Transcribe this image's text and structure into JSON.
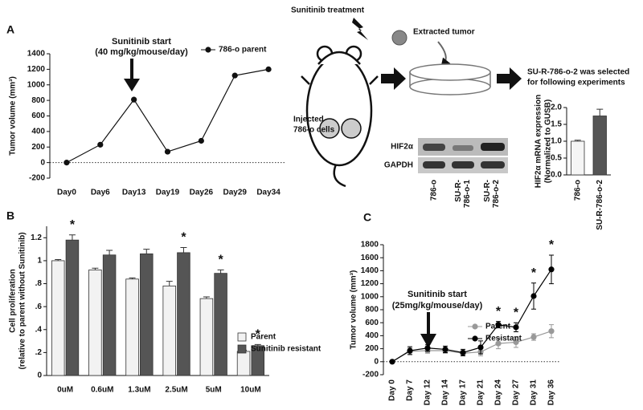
{
  "panels": {
    "a": "A",
    "b": "B",
    "c": "C"
  },
  "diagram": {
    "treatment": "Sunitinib treatment",
    "extracted": "Extracted tumor",
    "selected": [
      "SU-R-786-o-2 was selected",
      "for following experiments"
    ],
    "injected": [
      "Injected",
      "786-o cells"
    ],
    "blot_rows": [
      "HIF2α",
      "GAPDH"
    ],
    "blot_lanes": [
      [
        "786-o"
      ],
      [
        "SU-R-",
        "786-o-1"
      ],
      [
        "SU-R-",
        "786-o-2"
      ]
    ]
  },
  "chart_data": [
    {
      "type": "line",
      "ylabel": [
        "Tumor volume (mm³)"
      ],
      "annotation": [
        "Sunitinib start",
        "(40 mg/kg/mouse/day)"
      ],
      "categories": [
        "Day0",
        "Day6",
        "Day13",
        "Day19",
        "Day26",
        "Day29",
        "Day34"
      ],
      "series": [
        {
          "name": "786-o parent",
          "color": "#111111",
          "values": [
            0,
            230,
            810,
            140,
            280,
            1120,
            1200
          ]
        }
      ],
      "ylim": [
        -200,
        1400
      ],
      "yticks": [
        -200,
        0,
        200,
        400,
        600,
        800,
        1000,
        1200,
        1400
      ]
    },
    {
      "type": "bar",
      "ylabel": [
        "Cell proliferation",
        "(relative to parent without Sunitinib)"
      ],
      "categories": [
        "0uM",
        "0.6uM",
        "1.3uM",
        "2.5uM",
        "5uM",
        "10uM"
      ],
      "series": [
        {
          "name": "Parent",
          "color": "#f2f2f2",
          "values": [
            1.0,
            0.92,
            0.84,
            0.78,
            0.67,
            0.21
          ],
          "errors": [
            0.01,
            0.015,
            0.01,
            0.04,
            0.015,
            0.01
          ]
        },
        {
          "name": "Sunitinib resistant",
          "color": "#555555",
          "values": [
            1.18,
            1.05,
            1.06,
            1.07,
            0.89,
            0.26
          ],
          "errors": [
            0.045,
            0.04,
            0.04,
            0.045,
            0.03,
            0.01
          ],
          "significance": [
            "*",
            null,
            null,
            "*",
            "*",
            "*"
          ]
        }
      ],
      "ylim": [
        0,
        1.3
      ],
      "yticks": [
        0,
        {
          "value": 0.2,
          "label": ".2"
        },
        {
          "value": 0.4,
          "label": ".4"
        },
        {
          "value": 0.6,
          "label": ".6"
        },
        {
          "value": 0.8,
          "label": ".8"
        },
        1,
        1.2
      ]
    },
    {
      "type": "line",
      "ylabel": [
        "Tumor volume (mm³)"
      ],
      "annotation": [
        "Sunitinib start",
        "(25mg/kg/mouse/day)"
      ],
      "categories": [
        "Day 0",
        "Day 7",
        "Day 12",
        "Day 14",
        "Day 17",
        "Day 21",
        "Day 24",
        "Day 27",
        "Day 31",
        "Day 36"
      ],
      "series": [
        {
          "name": "Parent",
          "color": "#999999",
          "values": [
            0,
            160,
            170,
            170,
            130,
            150,
            280,
            300,
            380,
            470
          ],
          "errors": [
            0,
            50,
            40,
            40,
            40,
            60,
            80,
            80,
            50,
            100
          ]
        },
        {
          "name": "Resistant",
          "color": "#000000",
          "values": [
            0,
            170,
            210,
            190,
            140,
            220,
            570,
            530,
            1010,
            1420
          ],
          "errors": [
            0,
            60,
            50,
            50,
            50,
            100,
            50,
            70,
            200,
            220
          ],
          "significance": [
            null,
            null,
            null,
            null,
            null,
            null,
            "*",
            "*",
            "*",
            "*"
          ]
        }
      ],
      "ylim": [
        -200,
        1800
      ],
      "yticks": [
        -200,
        0,
        200,
        400,
        600,
        800,
        1000,
        1200,
        1400,
        1600,
        1800
      ]
    },
    {
      "type": "bar",
      "ylabel": [
        "HIF2α mRNA expression",
        "(Normalized to GUSB)"
      ],
      "categories": [
        "786-o",
        "SU-R-786-o-2"
      ],
      "series": [
        {
          "colors": [
            "#f5f5f5",
            "#555555"
          ],
          "values": [
            1.0,
            1.75
          ],
          "errors": [
            0.03,
            0.2
          ]
        }
      ],
      "ylim": [
        0,
        2
      ],
      "yticks": [
        {
          "value": 0,
          "label": "0.0"
        },
        {
          "value": 0.5,
          "label": "0.5"
        },
        {
          "value": 1,
          "label": "1.0"
        },
        {
          "value": 1.5,
          "label": "1.5"
        },
        {
          "value": 2,
          "label": "2.0"
        }
      ]
    }
  ]
}
